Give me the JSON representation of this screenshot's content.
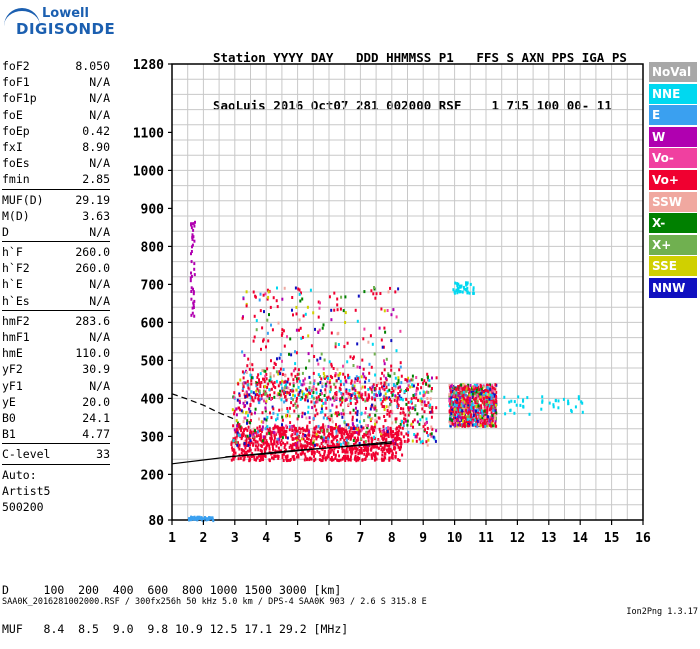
{
  "logo": {
    "line1": "Lowell",
    "line2": "DIGISONDE"
  },
  "header": {
    "labels": "Station YYYY DAY   DDD HHMMSS P1   FFS S AXN PPS IGA PS",
    "values": "SaoLuis 2016 Oct07 281 002000 RSF    1 715 100 00- 11"
  },
  "params": [
    {
      "name": "foF2",
      "value": "8.050"
    },
    {
      "name": "foF1",
      "value": "N/A"
    },
    {
      "name": "foF1p",
      "value": "N/A"
    },
    {
      "name": "foE",
      "value": "N/A"
    },
    {
      "name": "foEp",
      "value": "0.42"
    },
    {
      "name": "fxI",
      "value": "8.90"
    },
    {
      "name": "foEs",
      "value": "N/A"
    },
    {
      "name": "fmin",
      "value": "2.85"
    },
    {
      "sep": true
    },
    {
      "name": "MUF(D)",
      "value": "29.19"
    },
    {
      "name": "M(D)",
      "value": "3.63"
    },
    {
      "name": "D",
      "value": "N/A"
    },
    {
      "sep": true
    },
    {
      "name": "h`F",
      "value": "260.0"
    },
    {
      "name": "h`F2",
      "value": "260.0"
    },
    {
      "name": "h`E",
      "value": "N/A"
    },
    {
      "name": "h`Es",
      "value": "N/A"
    },
    {
      "sep": true
    },
    {
      "name": "hmF2",
      "value": "283.6"
    },
    {
      "name": "hmF1",
      "value": "N/A"
    },
    {
      "name": "hmE",
      "value": "110.0"
    },
    {
      "name": "yF2",
      "value": "30.9"
    },
    {
      "name": "yF1",
      "value": "N/A"
    },
    {
      "name": "yE",
      "value": "20.0"
    },
    {
      "name": "B0",
      "value": "24.1"
    },
    {
      "name": "B1",
      "value": "4.77"
    },
    {
      "sep": true
    },
    {
      "name": "C-level",
      "value": "33"
    },
    {
      "sep": true
    },
    {
      "text": "Auto:"
    },
    {
      "text": "Artist5"
    },
    {
      "text": "500200"
    }
  ],
  "legend": [
    {
      "label": "NoVal",
      "color": "#a8a8a8"
    },
    {
      "label": "NNE",
      "color": "#00d8f0"
    },
    {
      "label": "E",
      "color": "#3aa0f0"
    },
    {
      "label": "W",
      "color": "#b000b0"
    },
    {
      "label": "Vo-",
      "color": "#f040a0"
    },
    {
      "label": "Vo+",
      "color": "#f00030"
    },
    {
      "label": "SSW",
      "color": "#f0a8a0"
    },
    {
      "label": "X-",
      "color": "#008000"
    },
    {
      "label": "X+",
      "color": "#70b050"
    },
    {
      "label": "SSE",
      "color": "#d0d000"
    },
    {
      "label": "NNW",
      "color": "#1010c0"
    }
  ],
  "chart_data": {
    "type": "scatter",
    "title": "",
    "xlabel": "",
    "ylabel": "",
    "xlim": [
      1,
      16
    ],
    "ylim": [
      80,
      1280
    ],
    "x_ticks": [
      "1",
      "2",
      "3",
      "4",
      "5",
      "6",
      "7",
      "8",
      "9",
      "10",
      "11",
      "12",
      "13",
      "14",
      "15",
      "16"
    ],
    "y_ticks": [
      {
        "value": 80,
        "label": "80"
      },
      {
        "value": 200,
        "label": "200"
      },
      {
        "value": 300,
        "label": "300"
      },
      {
        "value": 400,
        "label": "400"
      },
      {
        "value": 500,
        "label": "500"
      },
      {
        "value": 600,
        "label": "600"
      },
      {
        "value": 700,
        "label": "700"
      },
      {
        "value": 800,
        "label": "800"
      },
      {
        "value": 900,
        "label": "900"
      },
      {
        "value": 1000,
        "label": "1000"
      },
      {
        "value": 1100,
        "label": "1100"
      },
      {
        "value": 1280,
        "label": "1280"
      }
    ],
    "grid": true,
    "ionogram_clusters": [
      {
        "fmin": 2.85,
        "fmax": 8.3,
        "hmin": 240,
        "hmax": 330,
        "density": "high",
        "color": "#f00030"
      },
      {
        "fmin": 2.9,
        "fmax": 9.4,
        "hmin": 280,
        "hmax": 470,
        "density": "high",
        "color": "mixed"
      },
      {
        "fmin": 3.2,
        "fmax": 8.3,
        "hmin": 400,
        "hmax": 700,
        "density": "medium",
        "color": "mixed"
      },
      {
        "fmin": 9.8,
        "fmax": 11.3,
        "hmin": 330,
        "hmax": 440,
        "density": "high",
        "color": "mixed"
      },
      {
        "fmin": 11.5,
        "fmax": 14.2,
        "hmin": 360,
        "hmax": 410,
        "density": "low",
        "color": "#00d8f0"
      },
      {
        "fmin": 9.9,
        "fmax": 10.6,
        "hmin": 680,
        "hmax": 710,
        "density": "low",
        "color": "#00d8f0"
      },
      {
        "fmin": 1.5,
        "fmax": 2.3,
        "hmin": 82,
        "hmax": 92,
        "density": "low",
        "color": "#3aa0f0"
      },
      {
        "fmin": 1.55,
        "fmax": 1.7,
        "hmin": 620,
        "hmax": 870,
        "density": "low",
        "color": "#b000b0"
      }
    ],
    "profile_curves": [
      {
        "name": "solid-1",
        "x": [
          1,
          2,
          3,
          4,
          5,
          6,
          7,
          8
        ],
        "y": [
          228,
          238,
          248,
          256,
          264,
          270,
          276,
          282
        ]
      },
      {
        "name": "solid-2",
        "x": [
          2.7,
          4,
          5,
          6,
          7,
          8
        ],
        "y": [
          246,
          254,
          262,
          270,
          278,
          286
        ]
      },
      {
        "name": "dashed",
        "x": [
          1,
          1.5,
          2,
          2.5,
          3
        ],
        "y": [
          412,
          398,
          382,
          362,
          345
        ]
      }
    ]
  },
  "footer": {
    "d_row": "D     100  200  400  600  800 1000 1500 3000 [km]",
    "muf_row": "MUF   8.4  8.5  9.0  9.8 10.9 12.5 17.1 29.2 [MHz]"
  },
  "bottom": {
    "left": "SAA0K_2016281002000.RSF / 300fx256h 50 kHz 5.0 km / DPS-4 SAA0K 903 / 2.6 S 315.8 E",
    "right": "Ion2Png 1.3.17"
  }
}
